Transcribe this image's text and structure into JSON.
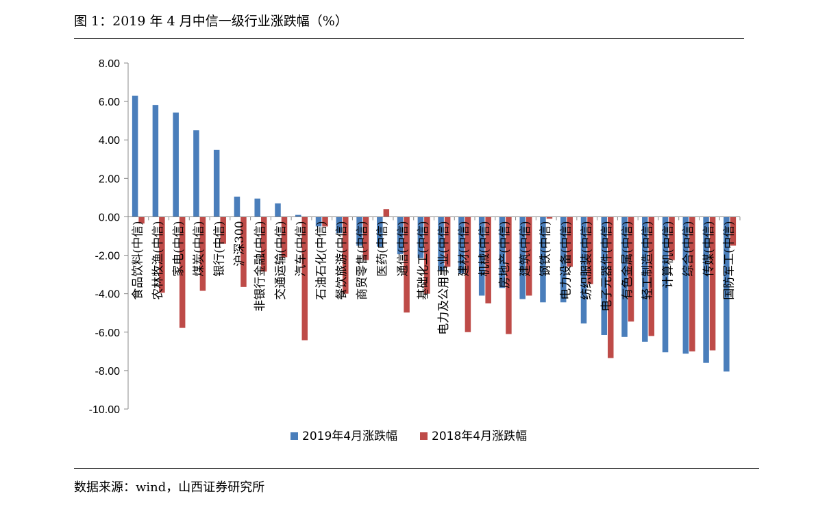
{
  "title": "图 1：2019 年 4 月中信一级行业涨跌幅（%）",
  "source": "数据来源：wind，山西证券研究所",
  "colors": {
    "series_2019": "#4a7ebb",
    "series_2018": "#be4b48"
  },
  "chart_data": {
    "type": "bar",
    "categories": [
      "食品饮料(中信)",
      "农林牧渔(中信)",
      "家电(中信)",
      "煤炭(中信)",
      "银行(中信)",
      "沪深300",
      "非银行金融(中信)",
      "交通运输(中信)",
      "汽车(中信)",
      "石油石化(中信)",
      "餐饮旅游(中信)",
      "商贸零售(中信)",
      "医药(中信)",
      "通信(中信)",
      "基础化工(中信)",
      "电力及公用事业(中信)",
      "建材(中信)",
      "机械(中信)",
      "房地产(中信)",
      "建筑(中信)",
      "钢铁(中信)",
      "电力设备(中信)",
      "纺织服装(中信)",
      "电子元器件(中信)",
      "有色金属(中信)",
      "轻工制造(中信)",
      "计算机(中信)",
      "综合(中信)",
      "传媒(中信)",
      "国防军工(中信)"
    ],
    "series": [
      {
        "name": "2019年4月涨跌幅",
        "values": [
          6.3,
          5.82,
          5.42,
          4.5,
          3.48,
          1.05,
          0.95,
          0.7,
          0.1,
          -0.5,
          -0.85,
          -1.5,
          -1.55,
          -1.95,
          -2.15,
          -2.78,
          -2.95,
          -4.1,
          -3.7,
          -4.28,
          -4.45,
          -4.45,
          -5.55,
          -6.15,
          -6.25,
          -6.5,
          -7.05,
          -7.12,
          -7.6,
          -8.05
        ]
      },
      {
        "name": "2018年4月涨跌幅",
        "values": [
          -0.35,
          -3.95,
          -5.78,
          -3.85,
          -1.4,
          -3.65,
          -2.85,
          -2.1,
          -6.42,
          -0.5,
          -4.0,
          -2.25,
          0.4,
          -4.98,
          -4.0,
          -2.6,
          -6.0,
          -4.5,
          -6.1,
          -4.1,
          -0.1,
          -2.6,
          -3.5,
          -7.35,
          -5.45,
          -6.2,
          -2.25,
          -7.0,
          -6.95,
          -1.5
        ]
      }
    ],
    "ylim": [
      -10,
      8
    ],
    "yticks": [
      "8.00",
      "6.00",
      "4.00",
      "2.00",
      "0.00",
      "-2.00",
      "-4.00",
      "-6.00",
      "-8.00",
      "-10.00"
    ],
    "ytick_values": [
      8,
      6,
      4,
      2,
      0,
      -2,
      -4,
      -6,
      -8,
      -10
    ],
    "legend": [
      "2019年4月涨跌幅",
      "2018年4月涨跌幅"
    ],
    "legend_position": "bottom",
    "grid": false
  }
}
